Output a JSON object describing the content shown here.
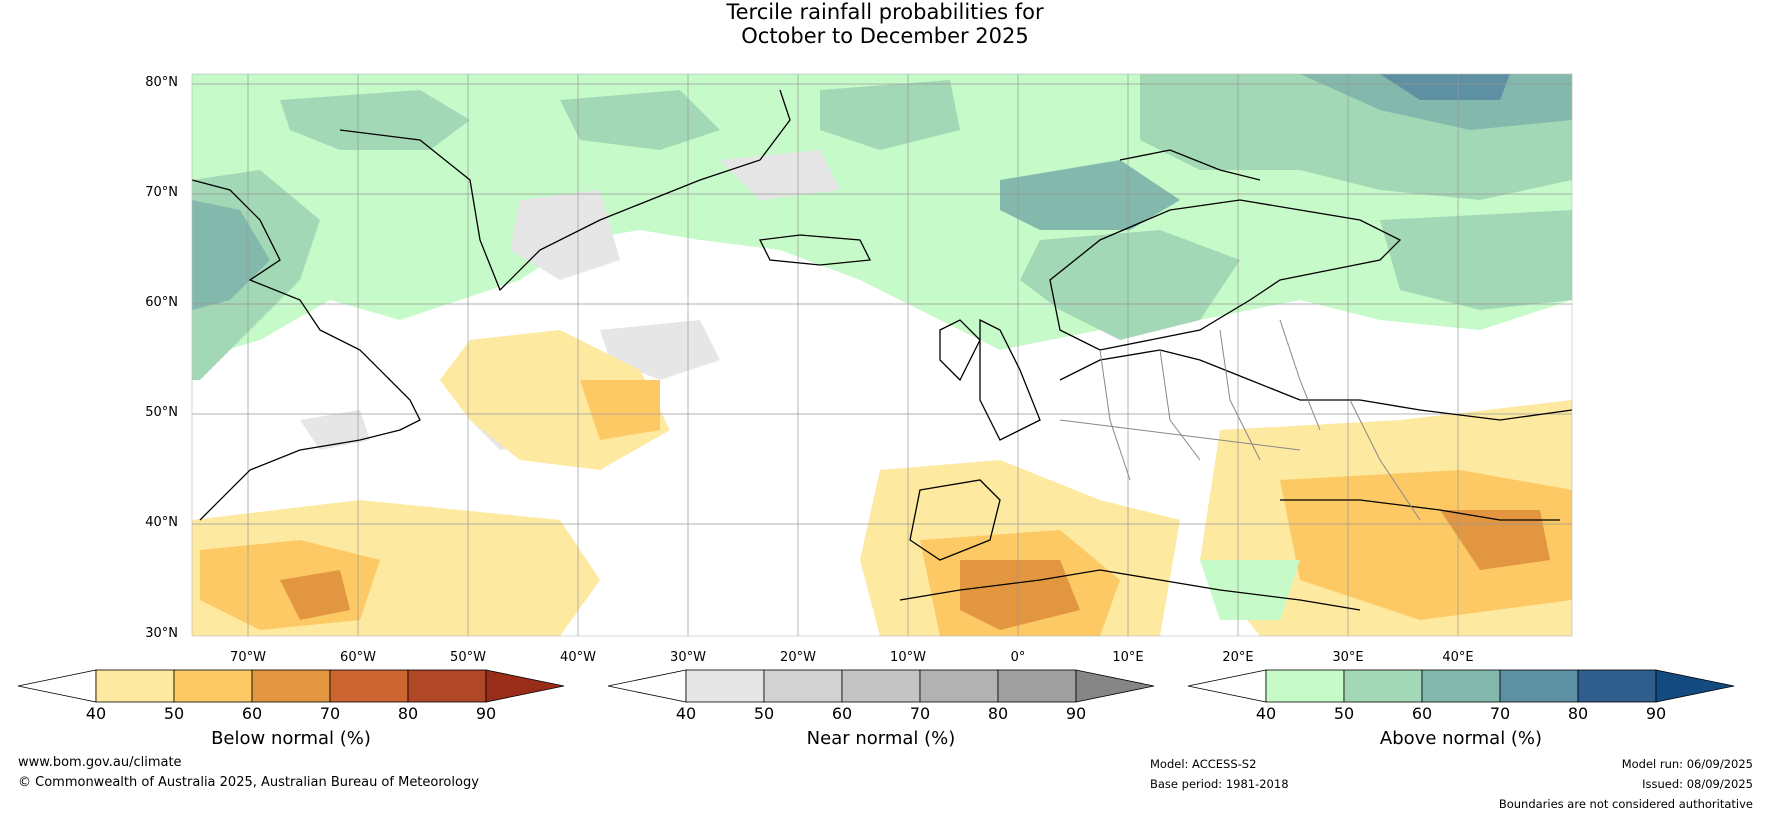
{
  "title": {
    "line1": "Tercile rainfall probabilities for",
    "line2": "October to December 2025"
  },
  "latitude_labels": [
    "80°N",
    "70°N",
    "60°N",
    "50°N",
    "40°N",
    "30°N"
  ],
  "longitude_labels": [
    "70°W",
    "60°W",
    "50°W",
    "40°W",
    "30°W",
    "20°W",
    "10°W",
    "0°",
    "10°E",
    "20°E",
    "30°E",
    "40°E"
  ],
  "colorbars": [
    {
      "title": "Below normal (%)",
      "ticks": [
        "40",
        "50",
        "60",
        "70",
        "80",
        "90"
      ],
      "colors": [
        "#ffffff",
        "#fde9a0",
        "#fdc965",
        "#e2963f",
        "#cd6530",
        "#b04726",
        "#9a2d1a"
      ]
    },
    {
      "title": "Near normal (%)",
      "ticks": [
        "40",
        "50",
        "60",
        "70",
        "80",
        "90"
      ],
      "colors": [
        "#ffffff",
        "#e6e6e6",
        "#d2d2d2",
        "#c4c4c4",
        "#b2b2b2",
        "#9f9f9f",
        "#858585"
      ]
    },
    {
      "title": "Above normal (%)",
      "ticks": [
        "40",
        "50",
        "60",
        "70",
        "80",
        "90"
      ],
      "colors": [
        "#ffffff",
        "#c6fac9",
        "#a2d8b6",
        "#83b8ad",
        "#5c90a2",
        "#2f5e8e",
        "#144a80"
      ]
    }
  ],
  "footer": {
    "website": "www.bom.gov.au/climate",
    "copyright": "© Commonwealth of Australia 2025, Australian Bureau of Meteorology",
    "model": "Model: ACCESS-S2",
    "base_period": "Base period: 1981-2018",
    "model_run": "Model run: 06/09/2025",
    "issued": "Issued: 08/09/2025",
    "disclaimer": "Boundaries are not considered authoritative"
  }
}
